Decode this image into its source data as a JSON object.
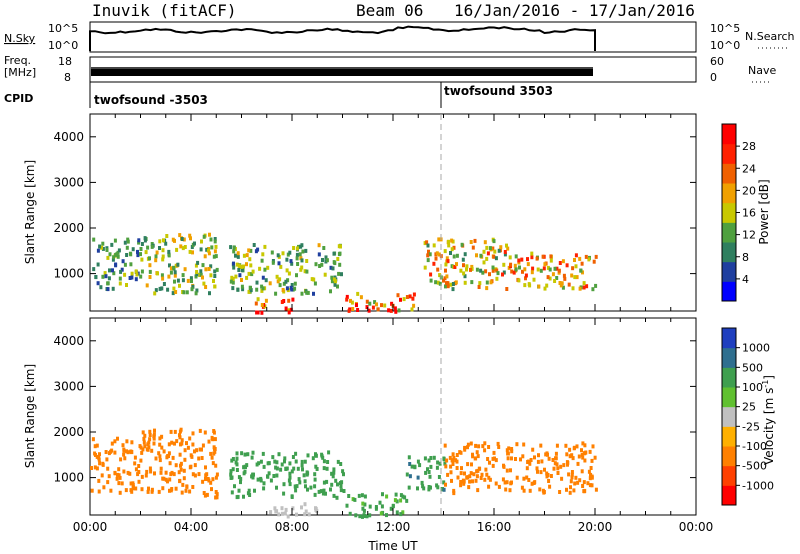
{
  "header": {
    "station": "Inuvik (fitACF)",
    "beam": "Beam 06",
    "date_range": "16/Jan/2016 - 17/Jan/2016"
  },
  "noise_panel": {
    "left_label": "N.Sky",
    "left_top": "10^5",
    "left_bottom": "10^0",
    "right_label": "N.Search",
    "right_top": "10^5",
    "right_bottom": "10^0"
  },
  "freq_panel": {
    "left_label_1": "Freq.",
    "left_label_2": "[MHz]",
    "left_top": "18",
    "left_bottom": "8",
    "right_label": "Nave",
    "right_top": "60",
    "right_bottom": "0"
  },
  "cpid": {
    "label": "CPID",
    "entries": [
      "twofsound -3503",
      "twofsound 3503"
    ]
  },
  "colors": {
    "power_scale": [
      "#0000ff",
      "#1f3f9f",
      "#2f7f5f",
      "#4fa03f",
      "#c8c800",
      "#f0a000",
      "#f06000",
      "#ff2000",
      "#ff0000"
    ],
    "velocity_scale": [
      "#ff0000",
      "#ff4000",
      "#ff8000",
      "#ffb000",
      "#c0c0c0",
      "#60c030",
      "#3f9f4f",
      "#2f6f8f",
      "#1f3fbf"
    ]
  },
  "chart_data": [
    {
      "type": "heatmap",
      "ylabel": "Slant Range [km]",
      "y_ticks": [
        "1000",
        "2000",
        "3000",
        "4000"
      ],
      "ylim": [
        180,
        4500
      ],
      "xlim": [
        0,
        24
      ],
      "colorbar_label": "Power [dB]",
      "colorbar_ticks": [
        "4",
        "8",
        "12",
        "16",
        "20",
        "24",
        "28"
      ],
      "colorbar_range": [
        0,
        32
      ],
      "scatter_clusters": [
        {
          "t0": 0.0,
          "t1": 2.0,
          "r0": 700,
          "r1": 1800,
          "value": 12
        },
        {
          "t0": 2.0,
          "t1": 5.0,
          "r0": 600,
          "r1": 1900,
          "value": 16
        },
        {
          "t0": 5.5,
          "t1": 10.0,
          "r0": 600,
          "r1": 1700,
          "value": 14
        },
        {
          "t0": 6.5,
          "t1": 8.2,
          "r0": 180,
          "r1": 500,
          "value": 30
        },
        {
          "t0": 10.0,
          "t1": 12.8,
          "r0": 180,
          "r1": 600,
          "value": 26
        },
        {
          "t0": 13.2,
          "t1": 16.5,
          "r0": 700,
          "r1": 1800,
          "value": 20
        },
        {
          "t0": 16.5,
          "t1": 20.0,
          "r0": 700,
          "r1": 1500,
          "value": 22
        }
      ]
    },
    {
      "type": "heatmap",
      "ylabel": "Slant Range [km]",
      "y_ticks": [
        "1000",
        "2000",
        "3000",
        "4000"
      ],
      "ylim": [
        180,
        4500
      ],
      "xlim": [
        0,
        24
      ],
      "x_ticks": [
        "00:00",
        "04:00",
        "08:00",
        "12:00",
        "16:00",
        "20:00",
        "00:00"
      ],
      "xlabel": "Time UT",
      "colorbar_label": "Velocity [m s^-1]",
      "colorbar_ticks": [
        "1000",
        "500",
        "100",
        "25",
        "-25",
        "-100",
        "-500",
        "-1000"
      ],
      "scatter_clusters": [
        {
          "t0": 0.0,
          "t1": 2.0,
          "r0": 700,
          "r1": 1900,
          "value": -300
        },
        {
          "t0": 2.0,
          "t1": 5.0,
          "r0": 600,
          "r1": 2100,
          "value": -200
        },
        {
          "t0": 5.5,
          "t1": 10.0,
          "r0": 600,
          "r1": 1600,
          "value": 150
        },
        {
          "t0": 7.0,
          "t1": 9.0,
          "r0": 180,
          "r1": 500,
          "value": 0
        },
        {
          "t0": 10.0,
          "t1": 12.5,
          "r0": 180,
          "r1": 700,
          "value": 120
        },
        {
          "t0": 12.5,
          "t1": 14.0,
          "r0": 700,
          "r1": 1500,
          "value": 400
        },
        {
          "t0": 14.0,
          "t1": 20.0,
          "r0": 700,
          "r1": 1800,
          "value": -300
        }
      ]
    }
  ]
}
